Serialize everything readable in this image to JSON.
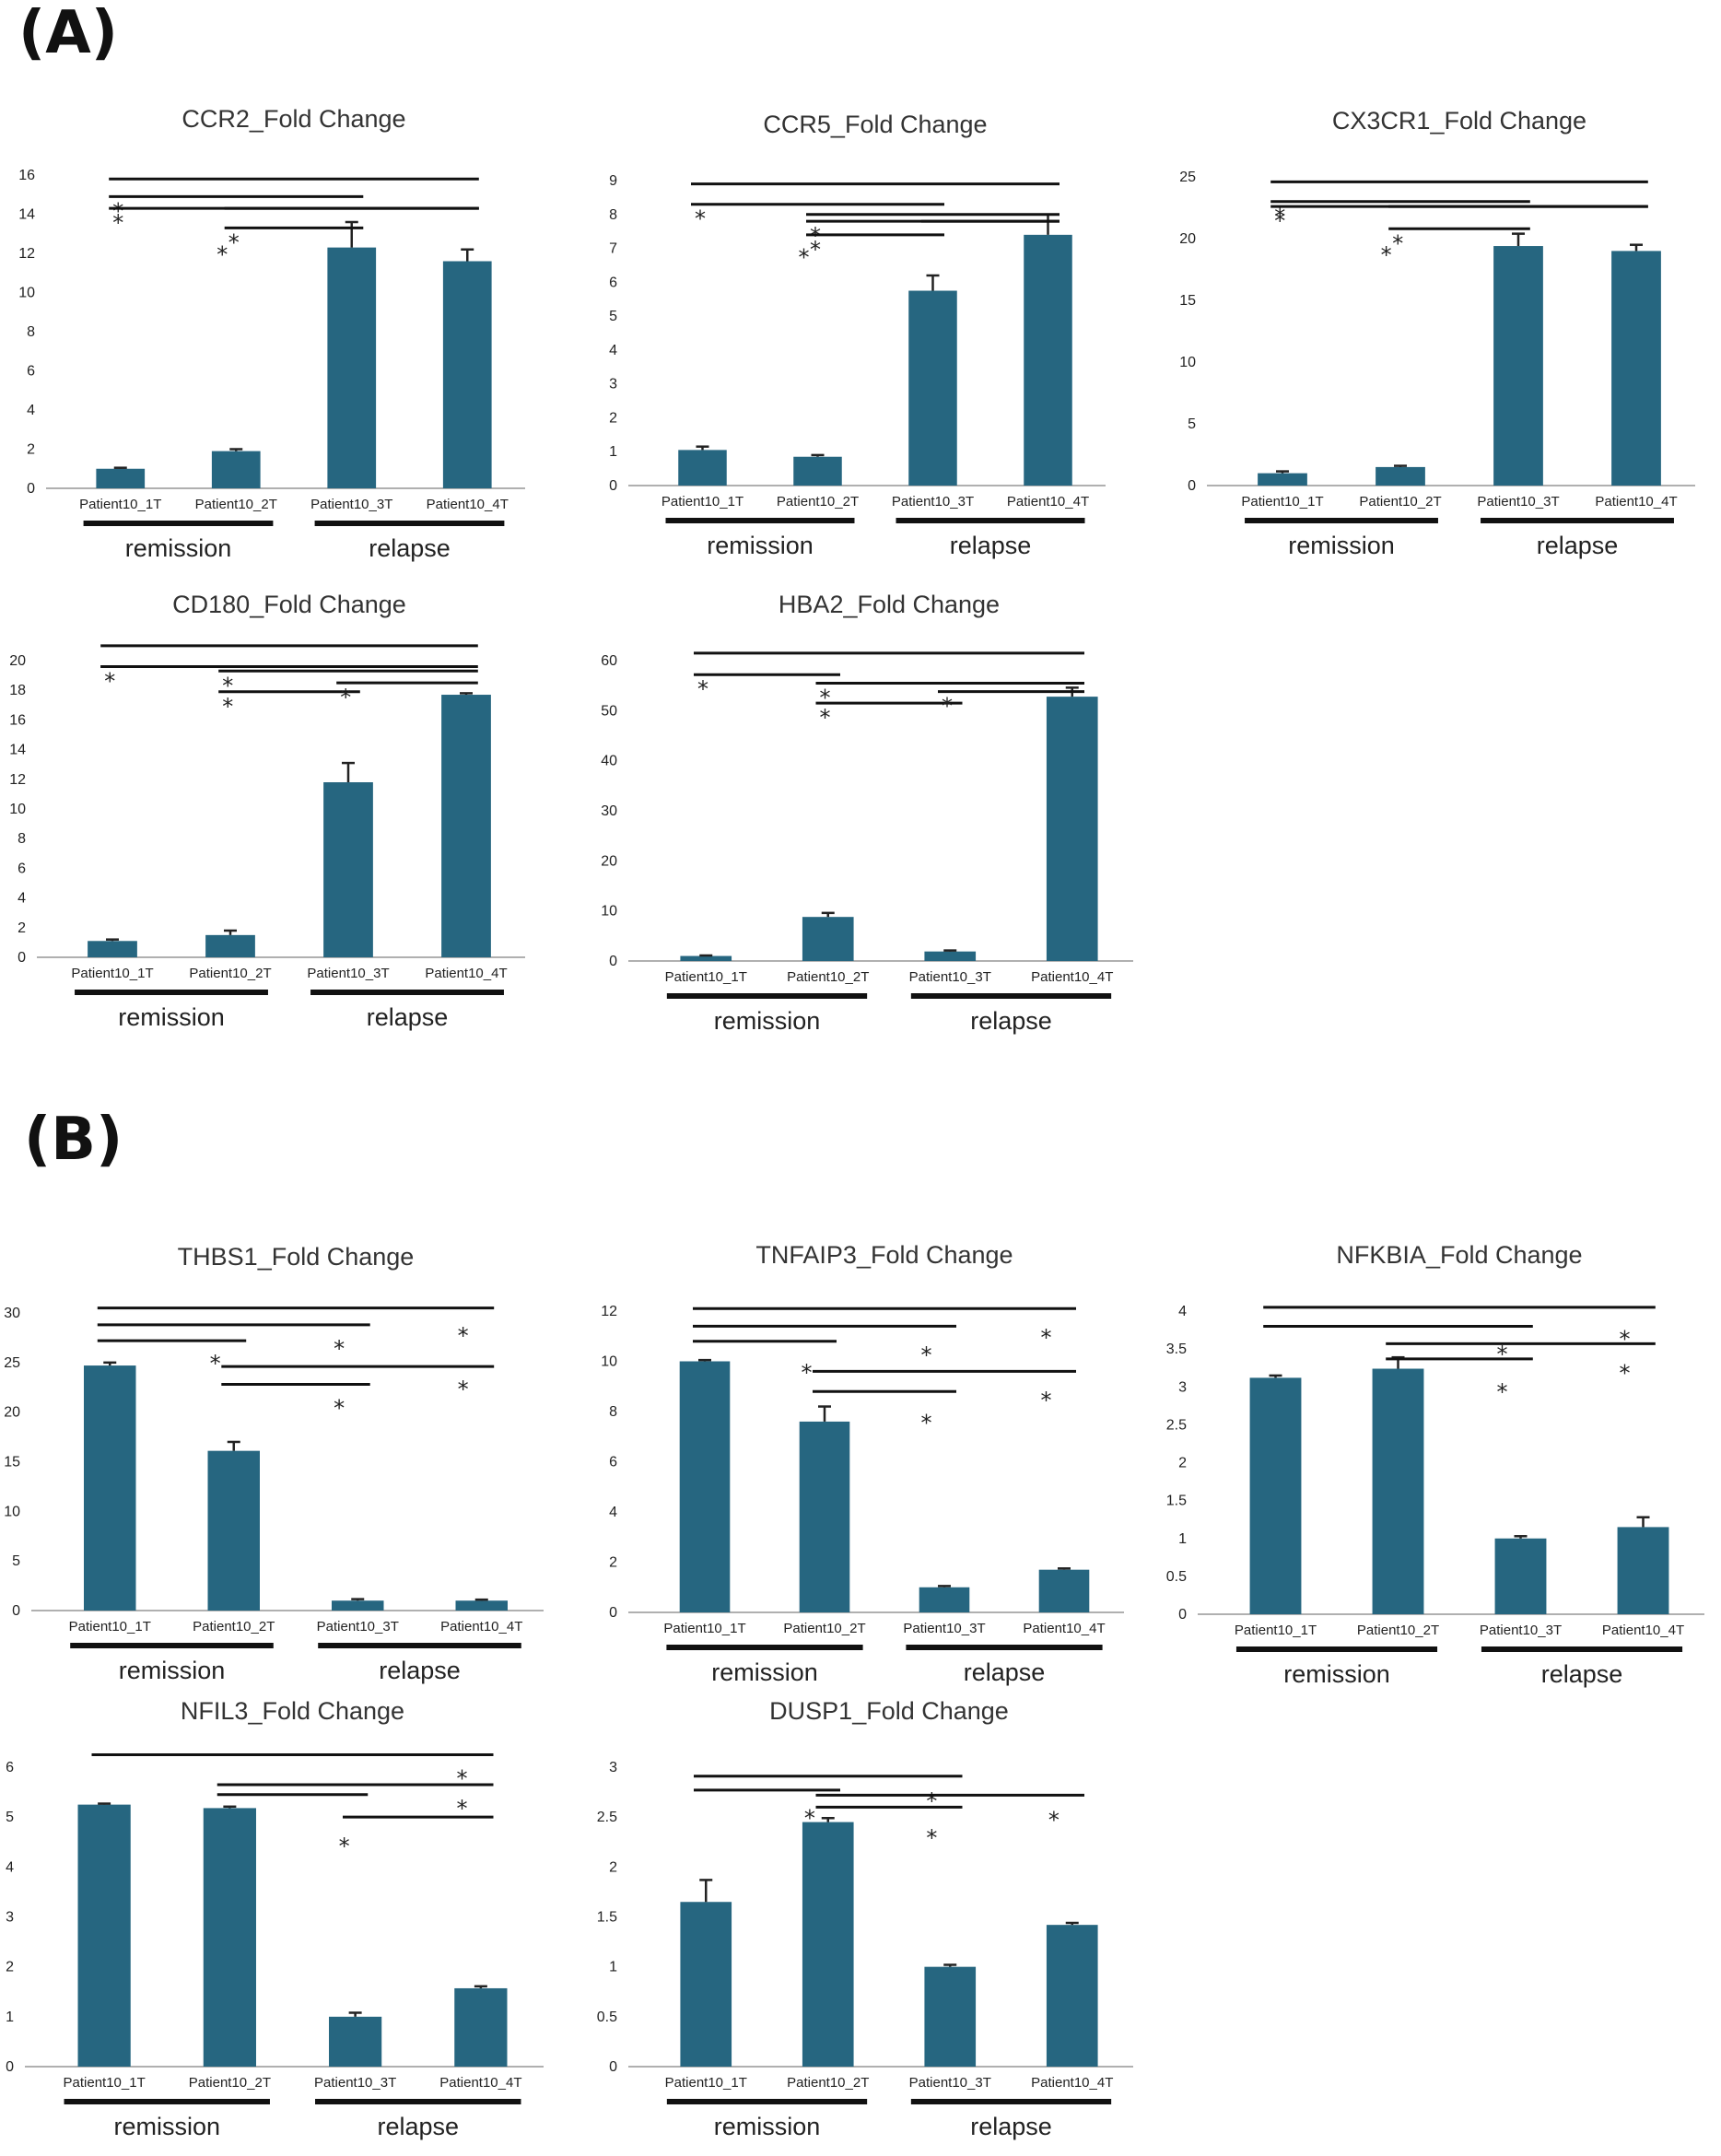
{
  "panels": {
    "a": "(A)",
    "b": "(B)"
  },
  "colors": {
    "bar": "#266680",
    "axis": "#b0b0b0",
    "line": "#111111"
  },
  "chart_data": [
    {
      "id": "ccr2",
      "type": "bar",
      "title": "CCR2_Fold Change",
      "categories": [
        "Patient10_1T",
        "Patient10_2T",
        "Patient10_3T",
        "Patient10_4T"
      ],
      "values": [
        1.0,
        1.9,
        12.3,
        11.6
      ],
      "errors": [
        0.05,
        0.1,
        1.3,
        0.6
      ],
      "ylim": [
        0,
        16
      ],
      "yticks": [
        0,
        2,
        4,
        6,
        8,
        10,
        12,
        14,
        16
      ],
      "groups": [
        "remission",
        "relapse"
      ],
      "star": "*",
      "sig": [
        {
          "from": 0,
          "to": 3,
          "y": 15.8
        },
        {
          "from": 0,
          "to": 2,
          "y": 14.9,
          "star": true
        },
        {
          "from": 0,
          "to": 3,
          "y": 14.3,
          "star": true
        },
        {
          "from": 1,
          "to": 3,
          "y": 14.3
        },
        {
          "from": 1,
          "to": 2,
          "y": 13.3,
          "star": true
        },
        {
          "from": null,
          "at": 1,
          "y": 12.4,
          "star": true
        }
      ]
    },
    {
      "id": "ccr5",
      "type": "bar",
      "title": "CCR5_Fold Change",
      "categories": [
        "Patient10_1T",
        "Patient10_2T",
        "Patient10_3T",
        "Patient10_4T"
      ],
      "values": [
        1.05,
        0.85,
        5.75,
        7.4
      ],
      "errors": [
        0.1,
        0.05,
        0.45,
        0.6
      ],
      "ylim": [
        0,
        9
      ],
      "yticks": [
        0,
        1,
        2,
        3,
        4,
        5,
        6,
        7,
        8,
        9
      ],
      "groups": [
        "remission",
        "relapse"
      ],
      "star": "*",
      "sig": [
        {
          "from": 0,
          "to": 3,
          "y": 8.9
        },
        {
          "from": 0,
          "to": 2,
          "y": 8.3,
          "star": true
        },
        {
          "from": 1,
          "to": 3,
          "y": 8.0
        },
        {
          "from": 0,
          "to": null,
          "at": 0,
          "y": 7.8,
          "star": true
        },
        {
          "from": 1,
          "to": 3,
          "y": 7.8,
          "star": true
        },
        {
          "from": 2,
          "to": 3,
          "y": 7.8
        },
        {
          "from": 1,
          "to": 2,
          "y": 7.4,
          "star": true
        },
        {
          "from": null,
          "at": 1,
          "y": 7.0,
          "star": true
        }
      ]
    },
    {
      "id": "cx3cr1",
      "type": "bar",
      "title": "CX3CR1_Fold Change",
      "categories": [
        "Patient10_1T",
        "Patient10_2T",
        "Patient10_3T",
        "Patient10_4T"
      ],
      "values": [
        1.0,
        1.5,
        19.4,
        19.0
      ],
      "errors": [
        0.15,
        0.1,
        1.0,
        0.5
      ],
      "ylim": [
        0,
        25
      ],
      "yticks": [
        0,
        5,
        10,
        15,
        20,
        25
      ],
      "groups": [
        "remission",
        "relapse"
      ],
      "star": "*",
      "sig": [
        {
          "from": 0,
          "to": 3,
          "y": 24.6
        },
        {
          "from": 0,
          "to": 2,
          "y": 23.0,
          "star": true
        },
        {
          "from": 0,
          "to": 3,
          "y": 22.6,
          "star": true
        },
        {
          "from": 1,
          "to": 3,
          "y": 22.6
        },
        {
          "from": 1,
          "to": 2,
          "y": 20.8,
          "star": true
        },
        {
          "from": null,
          "at": 1,
          "y": 19.4,
          "star": true
        }
      ]
    },
    {
      "id": "cd180",
      "type": "bar",
      "title": "CD180_Fold Change",
      "categories": [
        "Patient10_1T",
        "Patient10_2T",
        "Patient10_3T",
        "Patient10_4T"
      ],
      "values": [
        1.1,
        1.5,
        11.8,
        17.7
      ],
      "errors": [
        0.1,
        0.3,
        1.3,
        0.1
      ],
      "ylim": [
        0,
        20
      ],
      "yticks": [
        0,
        2,
        4,
        6,
        8,
        10,
        12,
        14,
        16,
        18,
        20
      ],
      "groups": [
        "remission",
        "relapse"
      ],
      "star": "*",
      "sig": [
        {
          "from": 0,
          "to": 3,
          "y": 21.0
        },
        {
          "from": 0,
          "to": 2,
          "y": 19.6,
          "star": true
        },
        {
          "from": 1,
          "to": 3,
          "y": 19.3,
          "star": true
        },
        {
          "from": 0,
          "to": 3,
          "y": 19.6
        },
        {
          "from": 1,
          "to": 2,
          "y": 17.9,
          "star": true
        },
        {
          "from": 2,
          "to": 3,
          "y": 18.5,
          "star": true
        }
      ]
    },
    {
      "id": "hba2",
      "type": "bar",
      "title": "HBA2_Fold Change",
      "categories": [
        "Patient10_1T",
        "Patient10_2T",
        "Patient10_3T",
        "Patient10_4T"
      ],
      "values": [
        1.0,
        8.8,
        1.9,
        52.8
      ],
      "errors": [
        0.1,
        0.8,
        0.2,
        1.8
      ],
      "ylim": [
        0,
        60
      ],
      "yticks": [
        0,
        10,
        20,
        30,
        40,
        50,
        60
      ],
      "groups": [
        "remission",
        "relapse"
      ],
      "star": "*",
      "sig": [
        {
          "from": 0,
          "to": 3,
          "y": 61.5
        },
        {
          "from": 0,
          "to": 1,
          "y": 57.2,
          "star": true
        },
        {
          "from": 1,
          "to": 3,
          "y": 55.5,
          "star": true
        },
        {
          "from": 1,
          "to": 3,
          "y": 55.5
        },
        {
          "from": 1,
          "to": 2,
          "y": 51.5,
          "star": true
        },
        {
          "from": 2,
          "to": 3,
          "y": 53.8,
          "star": true
        }
      ]
    },
    {
      "id": "thbs1",
      "type": "bar",
      "title": "THBS1_Fold Change",
      "categories": [
        "Patient10_1T",
        "Patient10_2T",
        "Patient10_3T",
        "Patient10_4T"
      ],
      "values": [
        24.7,
        16.1,
        1.0,
        1.0
      ],
      "errors": [
        0.3,
        0.9,
        0.15,
        0.1
      ],
      "ylim": [
        0,
        30
      ],
      "yticks": [
        0,
        5,
        10,
        15,
        20,
        25,
        30
      ],
      "groups": [
        "remission",
        "relapse"
      ],
      "star": "*",
      "sig": [
        {
          "from": 0,
          "to": 3,
          "y": 30.5,
          "starAt": 3,
          "starY": 28.6
        },
        {
          "from": 0,
          "to": 2,
          "y": 28.8,
          "starAt": 2,
          "starY": 27.3
        },
        {
          "from": 0,
          "to": 1,
          "y": 27.2,
          "starAt": 1,
          "starY": 25.8
        },
        {
          "from": 1,
          "to": 3,
          "y": 24.6,
          "starAt": 3,
          "starY": 23.2
        },
        {
          "from": 1,
          "to": 2,
          "y": 22.8,
          "starAt": 2,
          "starY": 21.3
        }
      ]
    },
    {
      "id": "tnfaip3",
      "type": "bar",
      "title": "TNFAIP3_Fold Change",
      "categories": [
        "Patient10_1T",
        "Patient10_2T",
        "Patient10_3T",
        "Patient10_4T"
      ],
      "values": [
        10.0,
        7.6,
        1.0,
        1.7
      ],
      "errors": [
        0.05,
        0.6,
        0.05,
        0.05
      ],
      "ylim": [
        0,
        12
      ],
      "yticks": [
        0,
        2,
        4,
        6,
        8,
        10,
        12
      ],
      "groups": [
        "remission",
        "relapse"
      ],
      "star": "*",
      "sig": [
        {
          "from": 0,
          "to": 3,
          "y": 12.1,
          "starAt": 3,
          "starY": 11.3
        },
        {
          "from": 0,
          "to": 2,
          "y": 11.4,
          "starAt": 2,
          "starY": 10.6
        },
        {
          "from": 0,
          "to": 1,
          "y": 10.8,
          "starAt": 1,
          "starY": 9.9
        },
        {
          "from": 1,
          "to": 3,
          "y": 9.6,
          "starAt": 3,
          "starY": 8.8
        },
        {
          "from": 1,
          "to": 2,
          "y": 8.8,
          "starAt": 2,
          "starY": 7.9
        }
      ]
    },
    {
      "id": "nfkbia",
      "type": "bar",
      "title": "NFKBIA_Fold Change",
      "categories": [
        "Patient10_1T",
        "Patient10_2T",
        "Patient10_3T",
        "Patient10_4T"
      ],
      "values": [
        3.12,
        3.24,
        1.0,
        1.15
      ],
      "errors": [
        0.03,
        0.15,
        0.03,
        0.13
      ],
      "ylim": [
        0,
        4
      ],
      "yticks": [
        0,
        0.5,
        1,
        1.5,
        2,
        2.5,
        3,
        3.5,
        4
      ],
      "groups": [
        "remission",
        "relapse"
      ],
      "star": "*",
      "sig": [
        {
          "from": 0,
          "to": 3,
          "y": 4.05,
          "starAt": 3,
          "starY": 3.75
        },
        {
          "from": 0,
          "to": 2,
          "y": 3.8,
          "starAt": 2,
          "starY": 3.55
        },
        {
          "from": 1,
          "to": 3,
          "y": 3.57,
          "starAt": 3,
          "starY": 3.3
        },
        {
          "from": 1,
          "to": 2,
          "y": 3.37,
          "starAt": 2,
          "starY": 3.05
        }
      ]
    },
    {
      "id": "nfil3",
      "type": "bar",
      "title": "NFIL3_Fold Change",
      "categories": [
        "Patient10_1T",
        "Patient10_2T",
        "Patient10_3T",
        "Patient10_4T"
      ],
      "values": [
        5.25,
        5.18,
        1.0,
        1.57
      ],
      "errors": [
        0.02,
        0.03,
        0.08,
        0.04
      ],
      "ylim": [
        0,
        6
      ],
      "yticks": [
        0,
        1,
        2,
        3,
        4,
        5,
        6
      ],
      "groups": [
        "remission",
        "relapse"
      ],
      "star": "*",
      "sig": [
        {
          "from": 0,
          "to": 3,
          "y": 6.25,
          "starAt": 3,
          "starY": 5.95
        },
        {
          "from": 1,
          "to": 3,
          "y": 5.65,
          "starAt": 3,
          "starY": 5.35
        },
        {
          "from": 1,
          "to": 2,
          "y": 5.45
        },
        {
          "from": 2,
          "to": 3,
          "y": 5.0,
          "starAt": 3,
          "starY": 4.6,
          "starLeft": true
        }
      ]
    },
    {
      "id": "dusp1",
      "type": "bar",
      "title": "DUSP1_Fold Change",
      "categories": [
        "Patient10_1T",
        "Patient10_2T",
        "Patient10_3T",
        "Patient10_4T"
      ],
      "values": [
        1.65,
        2.45,
        1.0,
        1.42
      ],
      "errors": [
        0.22,
        0.04,
        0.02,
        0.02
      ],
      "ylim": [
        0,
        3
      ],
      "yticks": [
        0,
        0.5,
        1,
        1.5,
        2,
        2.5,
        3
      ],
      "groups": [
        "remission",
        "relapse"
      ],
      "star": "*",
      "sig": [
        {
          "from": 0,
          "to": 2,
          "y": 2.91,
          "starAt": 2,
          "starY": 2.75
        },
        {
          "from": 0,
          "to": 1,
          "y": 2.77,
          "starAt": 1,
          "starY": 2.58
        },
        {
          "from": 1,
          "to": 3,
          "y": 2.72,
          "starAt": 3,
          "starY": 2.56
        },
        {
          "from": 1,
          "to": 2,
          "y": 2.6,
          "starAt": 2,
          "starY": 2.38
        }
      ]
    }
  ]
}
